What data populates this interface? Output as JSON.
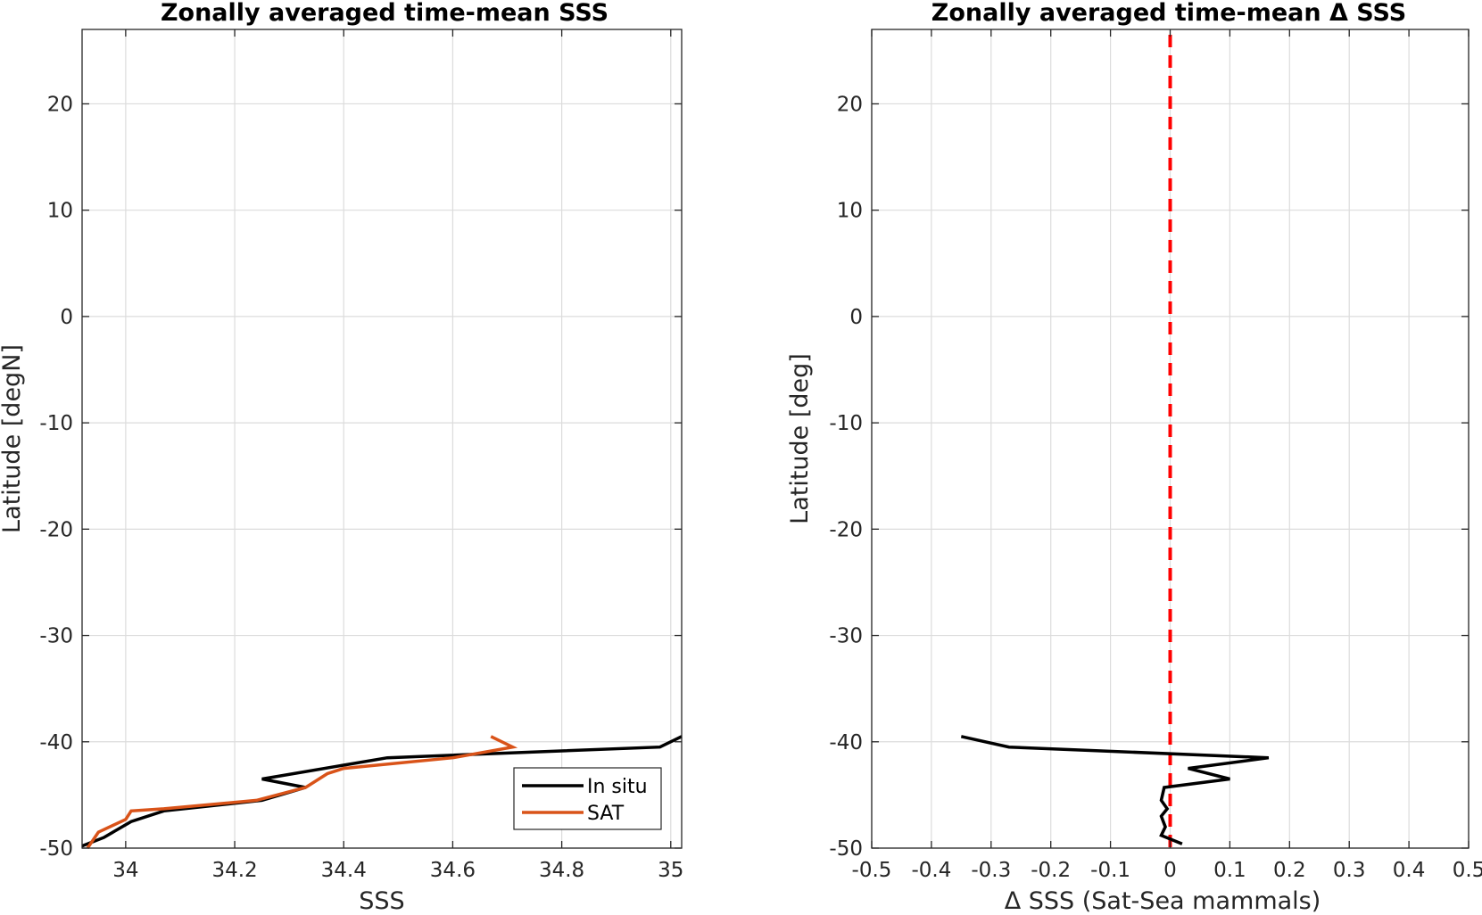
{
  "chart_data": [
    {
      "type": "line",
      "title": "Zonally averaged time-mean SSS",
      "xlabel": "SSS",
      "ylabel": "Latitude [degN]",
      "xlim": [
        33.92,
        35.02
      ],
      "ylim": [
        -50,
        27
      ],
      "xticks": [
        "34",
        "34.2",
        "34.4",
        "34.6",
        "34.8",
        "35"
      ],
      "xtick_values": [
        34,
        34.2,
        34.4,
        34.6,
        34.8,
        35
      ],
      "yticks": [
        "-50",
        "-40",
        "-30",
        "-20",
        "-10",
        "0",
        "10",
        "20"
      ],
      "ytick_values": [
        -50,
        -40,
        -30,
        -20,
        -10,
        0,
        10,
        20
      ],
      "grid": true,
      "legend": {
        "position": "bottom-right",
        "entries": [
          "In situ",
          "SAT"
        ]
      },
      "series": [
        {
          "name": "In situ",
          "color": "#000000",
          "points": [
            [
              35.02,
              -39.5
            ],
            [
              34.98,
              -40.5
            ],
            [
              34.48,
              -41.5
            ],
            [
              34.25,
              -43.5
            ],
            [
              34.33,
              -44.3
            ],
            [
              34.25,
              -45.5
            ],
            [
              34.07,
              -46.5
            ],
            [
              34.01,
              -47.5
            ],
            [
              33.96,
              -49
            ],
            [
              33.92,
              -49.8
            ]
          ]
        },
        {
          "name": "SAT",
          "color": "#D95319",
          "points": [
            [
              34.67,
              -39.5
            ],
            [
              34.71,
              -40.5
            ],
            [
              34.6,
              -41.5
            ],
            [
              34.4,
              -42.5
            ],
            [
              34.37,
              -43
            ],
            [
              34.33,
              -44.3
            ],
            [
              34.24,
              -45.5
            ],
            [
              34.07,
              -46.3
            ],
            [
              34.01,
              -46.5
            ],
            [
              34.0,
              -47.3
            ],
            [
              33.95,
              -48.5
            ],
            [
              33.93,
              -50
            ]
          ]
        }
      ]
    },
    {
      "type": "line",
      "title": "Zonally averaged time-mean Δ SSS",
      "xlabel": "Δ SSS (Sat-Sea mammals)",
      "ylabel": "Latitude [deg]",
      "xlim": [
        -0.5,
        0.5
      ],
      "ylim": [
        -50,
        27
      ],
      "xticks": [
        "-0.5",
        "-0.4",
        "-0.3",
        "-0.2",
        "-0.1",
        "0",
        "0.1",
        "0.2",
        "0.3",
        "0.4",
        "0.5"
      ],
      "xtick_values": [
        -0.5,
        -0.4,
        -0.3,
        -0.2,
        -0.1,
        0,
        0.1,
        0.2,
        0.3,
        0.4,
        0.5
      ],
      "yticks": [
        "-50",
        "-40",
        "-30",
        "-20",
        "-10",
        "0",
        "10",
        "20"
      ],
      "ytick_values": [
        -50,
        -40,
        -30,
        -20,
        -10,
        0,
        10,
        20
      ],
      "grid": true,
      "reference_line": {
        "x": 0,
        "color": "#FF0000",
        "style": "dashed"
      },
      "series": [
        {
          "color": "#000000",
          "points": [
            [
              -0.35,
              -39.5
            ],
            [
              -0.27,
              -40.5
            ],
            [
              0.165,
              -41.5
            ],
            [
              0.03,
              -42.5
            ],
            [
              0.1,
              -43.5
            ],
            [
              -0.01,
              -44.3
            ],
            [
              -0.015,
              -45.5
            ],
            [
              -0.005,
              -46.3
            ],
            [
              -0.015,
              -47
            ],
            [
              -0.008,
              -48
            ],
            [
              -0.015,
              -48.8
            ],
            [
              0.02,
              -49.6
            ]
          ]
        }
      ]
    }
  ]
}
